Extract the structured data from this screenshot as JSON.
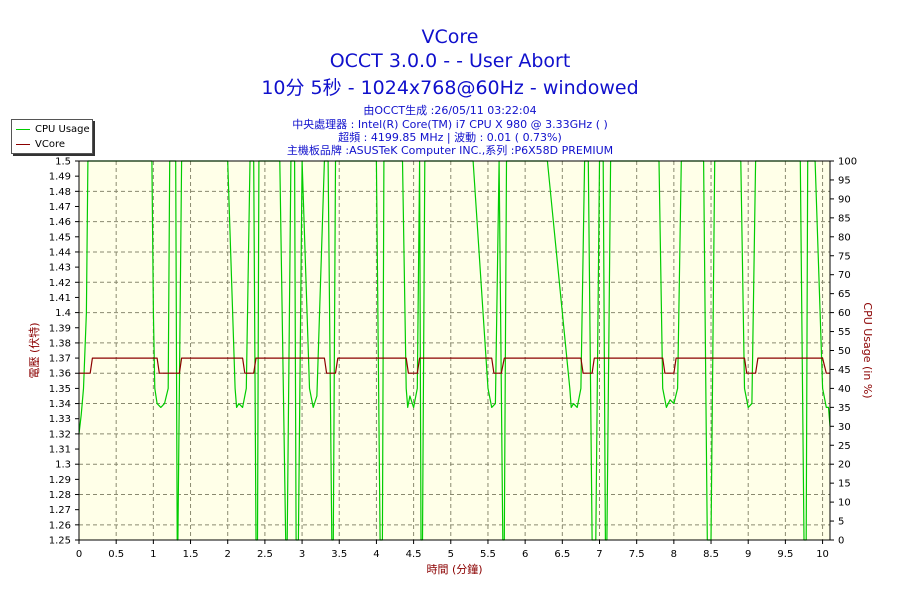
{
  "chart_data": {
    "type": "line",
    "title": "VCore",
    "subtitle_line1": "OCCT 3.0.0 -  - User Abort",
    "subtitle_line2": "10分 5秒 - 1024x768@60Hz - windowed",
    "info_lines": [
      "由OCCT生成 :26/05/11 03:22:04",
      "中央處理器 : Intel(R) Core(TM) i7 CPU X 980 @ 3.33GHz (  )",
      "超頻 : 4199.85 MHz | 波動 : 0.01 ( 0.73%)",
      "主機板品牌 :ASUSTeK Computer INC.,系列 :P6X58D PREMIUM"
    ],
    "xlabel": "時間 (分鐘)",
    "ylabel_left": "電壓 (伏特)",
    "ylabel_right": "CPU Usage (in %)",
    "xlim": [
      0,
      10.1
    ],
    "ylim_left": [
      1.25,
      1.5
    ],
    "ylim_right": [
      0,
      100
    ],
    "x_ticks": [
      "0",
      "0.5",
      "1",
      "1.5",
      "2",
      "2.5",
      "3",
      "3.5",
      "4",
      "4.5",
      "5",
      "5.5",
      "6",
      "6.5",
      "7",
      "7.5",
      "8",
      "8.5",
      "9",
      "9.5",
      "10"
    ],
    "y_left_ticks": [
      "1.25",
      "1.26",
      "1.27",
      "1.28",
      "1.29",
      "1.3",
      "1.31",
      "1.32",
      "1.33",
      "1.34",
      "1.35",
      "1.36",
      "1.37",
      "1.38",
      "1.39",
      "1.4",
      "1.41",
      "1.42",
      "1.43",
      "1.44",
      "1.45",
      "1.46",
      "1.47",
      "1.48",
      "1.49",
      "1.5"
    ],
    "y_right_ticks": [
      "0",
      "5",
      "10",
      "15",
      "20",
      "25",
      "30",
      "35",
      "40",
      "45",
      "50",
      "55",
      "60",
      "65",
      "70",
      "75",
      "80",
      "85",
      "90",
      "95",
      "100"
    ],
    "grid": true,
    "legend_position": "top-left",
    "series": [
      {
        "name": "CPU Usage",
        "axis": "right",
        "color": "#00cc00",
        "x": [
          0,
          0.03,
          0.06,
          0.1,
          0.12,
          0.15,
          0.2,
          0.4,
          0.7,
          0.98,
          1.0,
          1.02,
          1.05,
          1.1,
          1.15,
          1.2,
          1.22,
          1.25,
          1.3,
          1.32,
          1.33,
          1.38,
          1.4,
          1.42,
          1.45,
          2.0,
          2.1,
          2.12,
          2.15,
          2.2,
          2.25,
          2.3,
          2.35,
          2.38,
          2.4,
          2.42,
          2.7,
          2.78,
          2.8,
          2.85,
          2.9,
          2.92,
          2.95,
          3.0,
          3.1,
          3.15,
          3.2,
          3.3,
          3.35,
          3.4,
          3.42,
          3.45,
          3.8,
          4.0,
          4.05,
          4.08,
          4.1,
          4.3,
          4.35,
          4.4,
          4.42,
          4.45,
          4.5,
          4.55,
          4.58,
          4.6,
          4.62,
          4.65,
          5.3,
          5.5,
          5.55,
          5.6,
          5.65,
          5.7,
          5.72,
          5.75,
          6.3,
          6.6,
          6.62,
          6.65,
          6.7,
          6.75,
          6.8,
          6.85,
          6.9,
          6.95,
          7.0,
          7.05,
          7.08,
          7.1,
          7.15,
          7.8,
          7.85,
          7.9,
          7.95,
          8.0,
          8.05,
          8.1,
          8.4,
          8.45,
          8.5,
          8.55,
          8.9,
          8.95,
          9.0,
          9.05,
          9.1,
          9.7,
          9.75,
          9.78,
          9.8,
          9.9,
          10.0,
          10.05,
          10.08,
          10.1
        ],
        "y": [
          28,
          33,
          40,
          60,
          100,
          100,
          100,
          100,
          100,
          100,
          60,
          40,
          36,
          35,
          36,
          40,
          100,
          100,
          100,
          0,
          0,
          100,
          100,
          100,
          100,
          100,
          40,
          35,
          36,
          35,
          40,
          100,
          100,
          0,
          0,
          100,
          100,
          0,
          0,
          100,
          100,
          0,
          0,
          100,
          40,
          35,
          38,
          100,
          100,
          0,
          0,
          100,
          100,
          100,
          0,
          0,
          100,
          100,
          100,
          40,
          35,
          38,
          35,
          40,
          100,
          0,
          0,
          100,
          100,
          40,
          35,
          36,
          100,
          0,
          0,
          100,
          100,
          40,
          35,
          36,
          35,
          40,
          100,
          100,
          0,
          0,
          100,
          100,
          0,
          0,
          100,
          100,
          40,
          35,
          37,
          36,
          40,
          100,
          100,
          0,
          0,
          100,
          100,
          40,
          35,
          36,
          100,
          100,
          0,
          0,
          100,
          100,
          40,
          35,
          35,
          30
        ]
      },
      {
        "name": "VCore",
        "axis": "left",
        "color": "#8b0000",
        "x": [
          0,
          0.15,
          0.18,
          0.22,
          0.25,
          0.3,
          1.05,
          1.08,
          1.12,
          1.3,
          1.35,
          1.38,
          1.42,
          2.2,
          2.23,
          2.27,
          2.35,
          2.38,
          2.42,
          3.3,
          3.33,
          3.37,
          3.45,
          3.48,
          3.52,
          4.4,
          4.43,
          4.47,
          4.55,
          4.58,
          4.62,
          5.55,
          5.58,
          5.62,
          5.68,
          5.72,
          5.76,
          6.75,
          6.78,
          6.82,
          6.9,
          6.93,
          6.97,
          7.85,
          7.88,
          7.92,
          8.0,
          8.03,
          8.07,
          8.95,
          8.98,
          9.02,
          9.1,
          9.13,
          9.17,
          10.0,
          10.05,
          10.1
        ],
        "y": [
          1.36,
          1.36,
          1.37,
          1.37,
          1.37,
          1.37,
          1.37,
          1.36,
          1.36,
          1.36,
          1.36,
          1.37,
          1.37,
          1.37,
          1.36,
          1.36,
          1.36,
          1.37,
          1.37,
          1.37,
          1.36,
          1.36,
          1.36,
          1.37,
          1.37,
          1.37,
          1.36,
          1.36,
          1.36,
          1.37,
          1.37,
          1.37,
          1.36,
          1.36,
          1.36,
          1.37,
          1.37,
          1.37,
          1.36,
          1.36,
          1.36,
          1.37,
          1.37,
          1.37,
          1.36,
          1.36,
          1.36,
          1.37,
          1.37,
          1.37,
          1.36,
          1.36,
          1.36,
          1.37,
          1.37,
          1.37,
          1.36,
          1.36
        ]
      }
    ]
  }
}
